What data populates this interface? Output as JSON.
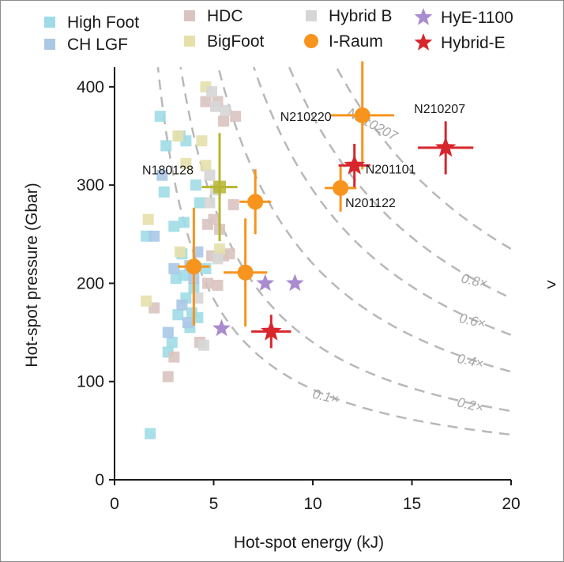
{
  "chart_data": {
    "type": "scatter",
    "xlabel": "Hot-spot energy (kJ)",
    "ylabel": "Hot-spot pressure (Gbar)",
    "xlim": [
      0,
      20
    ],
    "ylim": [
      0,
      420
    ],
    "xticks": [
      0,
      5,
      10,
      15,
      20
    ],
    "yticks": [
      0,
      100,
      200,
      300,
      400
    ],
    "grid": false,
    "legend_position": "top",
    "legend": [
      {
        "name": "High Foot",
        "marker": "square",
        "color": "#9edbe6"
      },
      {
        "name": "CH LGF",
        "marker": "square",
        "color": "#aac8e6"
      },
      {
        "name": "HDC",
        "marker": "square",
        "color": "#d9c4c0"
      },
      {
        "name": "BigFoot",
        "marker": "square",
        "color": "#e6e0aa"
      },
      {
        "name": "Hybrid B",
        "marker": "square",
        "color": "#d6d6d6"
      },
      {
        "name": "I-Raum",
        "marker": "circle",
        "color": "#f7941d"
      },
      {
        "name": "HyE-1100",
        "marker": "star",
        "color": "#a98bd0"
      },
      {
        "name": "Hybrid-E",
        "marker": "star",
        "color": "#d7262c"
      }
    ],
    "contours": [
      {
        "label": "0.1×",
        "k": 920
      },
      {
        "label": "0.2×",
        "k": 1400
      },
      {
        "label": "0.4×",
        "k": 2200
      },
      {
        "label": "0.6×",
        "k": 2950
      },
      {
        "label": "0.8×",
        "k": 3700
      },
      {
        "label": "N210207",
        "k": 4700
      }
    ],
    "series": [
      {
        "name": "High Foot",
        "points": [
          [
            1.8,
            47
          ],
          [
            2.3,
            370
          ],
          [
            2.6,
            340
          ],
          [
            2.5,
            293
          ],
          [
            3.0,
            258
          ],
          [
            3.4,
            230
          ],
          [
            3.1,
            205
          ],
          [
            3.6,
            185
          ],
          [
            3.9,
            170
          ],
          [
            3.8,
            155
          ],
          [
            3.2,
            168
          ],
          [
            2.9,
            140
          ],
          [
            2.7,
            130
          ],
          [
            3.3,
            350
          ],
          [
            3.6,
            345
          ],
          [
            4.1,
            300
          ],
          [
            4.3,
            282
          ],
          [
            3.5,
            262
          ],
          [
            3.5,
            208
          ],
          [
            4.0,
            195
          ],
          [
            4.6,
            215
          ],
          [
            1.6,
            248
          ],
          [
            4.2,
            165
          ]
        ]
      },
      {
        "name": "CH LGF",
        "points": [
          [
            2.0,
            248
          ],
          [
            2.4,
            310
          ],
          [
            3.0,
            215
          ],
          [
            3.4,
            178
          ],
          [
            4.0,
            205
          ],
          [
            3.7,
            160
          ],
          [
            2.7,
            150
          ],
          [
            3.8,
            218
          ],
          [
            4.2,
            232
          ]
        ]
      },
      {
        "name": "HDC",
        "points": [
          [
            4.7,
            260
          ],
          [
            5.5,
            228
          ],
          [
            5.8,
            230
          ],
          [
            5.0,
            265
          ],
          [
            5.3,
            255
          ],
          [
            6.0,
            280
          ],
          [
            5.5,
            365
          ],
          [
            6.1,
            370
          ],
          [
            4.6,
            385
          ],
          [
            5.2,
            385
          ],
          [
            2.7,
            105
          ],
          [
            3.0,
            125
          ],
          [
            4.7,
            200
          ],
          [
            4.9,
            228
          ],
          [
            5.2,
            198
          ],
          [
            4.3,
            140
          ],
          [
            2.0,
            175
          ]
        ]
      },
      {
        "name": "BigFoot",
        "points": [
          [
            1.6,
            182
          ],
          [
            1.7,
            265
          ],
          [
            3.2,
            350
          ],
          [
            3.3,
            232
          ],
          [
            3.6,
            322
          ],
          [
            4.6,
            320
          ],
          [
            4.6,
            400
          ],
          [
            4.4,
            345
          ],
          [
            5.3,
            235
          ]
        ]
      },
      {
        "name": "Hybrid B",
        "points": [
          [
            4.9,
            395
          ],
          [
            5.1,
            380
          ],
          [
            4.8,
            310
          ],
          [
            5.1,
            295
          ],
          [
            4.8,
            282
          ],
          [
            5.6,
            376
          ],
          [
            5.2,
            225
          ],
          [
            4.5,
            137
          ],
          [
            4.2,
            185
          ]
        ]
      },
      {
        "name": "I-Raum",
        "points": [
          {
            "x": 4.0,
            "y": 217,
            "xerr": 0.8,
            "yerr": 60
          },
          {
            "x": 6.6,
            "y": 211,
            "xerr": 1.1,
            "yerr": 55
          },
          {
            "x": 7.1,
            "y": 283,
            "xerr": 0.8,
            "yerr": 33
          },
          {
            "x": 11.4,
            "y": 297,
            "xerr": 0.8,
            "yerr": 24,
            "label": "N201122"
          },
          {
            "x": 12.5,
            "y": 371,
            "xerr": 1.6,
            "yerr": 55,
            "label": "N210220"
          }
        ]
      },
      {
        "name": "HyE-1100",
        "points": [
          [
            5.4,
            154
          ],
          [
            7.6,
            200
          ],
          [
            9.1,
            200
          ]
        ]
      },
      {
        "name": "Hybrid-E",
        "points": [
          {
            "x": 7.9,
            "y": 151,
            "xerr": 1.0,
            "yerr": 17
          },
          {
            "x": 12.1,
            "y": 320,
            "xerr": 0.8,
            "yerr": 22,
            "label": "N201101"
          },
          {
            "x": 16.7,
            "y": 338,
            "xerr": 1.4,
            "yerr": 27,
            "label": "N210207"
          }
        ]
      },
      {
        "name": "",
        "color": "#b5b531",
        "marker": "cross",
        "points": [
          {
            "x": 5.3,
            "y": 298,
            "xerr": 0.9,
            "yerr": 55,
            "label": "N180128"
          }
        ]
      }
    ],
    "annotations": [
      ">"
    ]
  }
}
